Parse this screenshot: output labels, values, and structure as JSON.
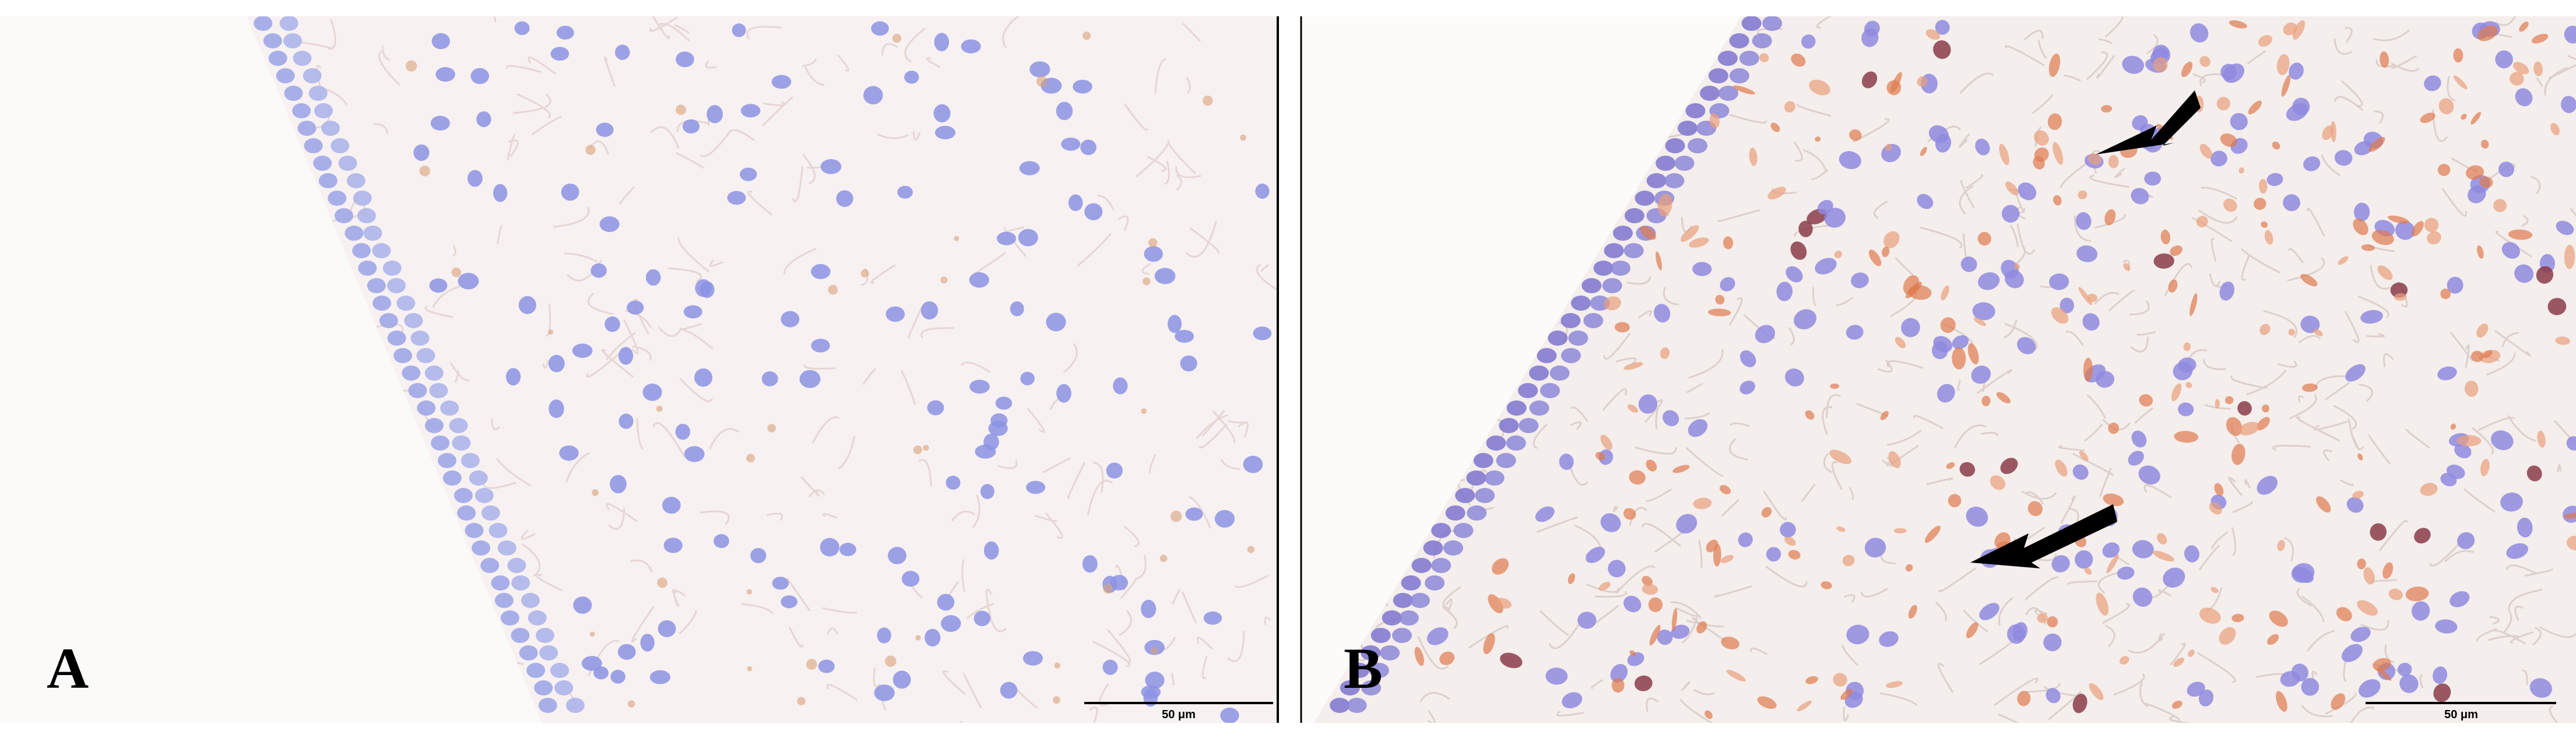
{
  "panels": [
    {
      "label": "A",
      "scale_bar": "50 μm"
    },
    {
      "label": "B",
      "scale_bar": "50 μm"
    }
  ]
}
